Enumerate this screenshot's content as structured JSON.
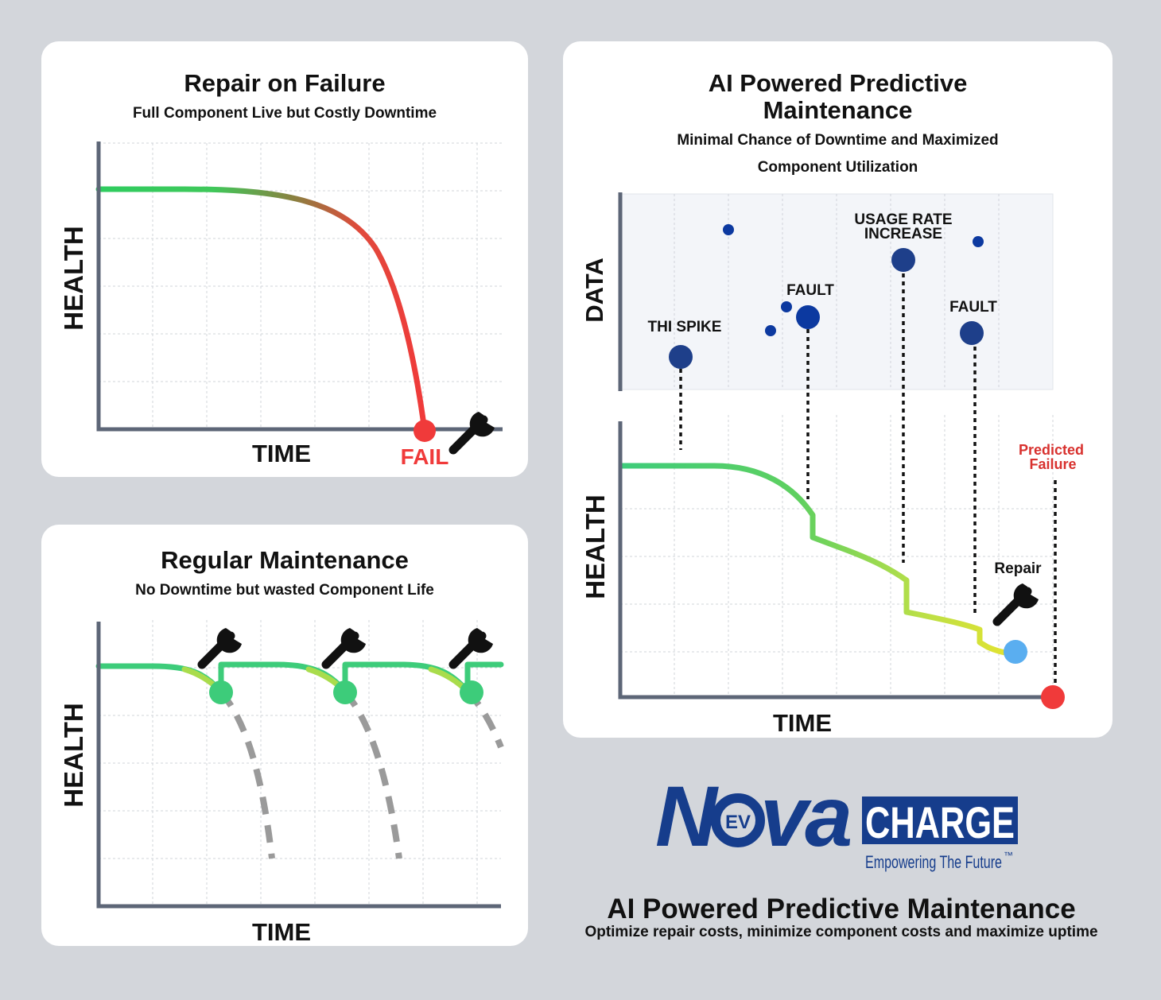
{
  "panels": {
    "repair": {
      "title": "Repair on Failure",
      "subtitle": "Full Component Live but Costly Downtime",
      "y_label": "HEALTH",
      "x_label": "TIME",
      "fail_label": "FAIL"
    },
    "regular": {
      "title": "Regular Maintenance",
      "subtitle": "No Downtime but wasted Component Life",
      "y_label": "HEALTH",
      "x_label": "TIME"
    },
    "ai": {
      "title_line1": "AI Powered Predictive",
      "title_line2": "Maintenance",
      "subtitle_line1": "Minimal Chance of Downtime and Maximized",
      "subtitle_line2": "Component Utilization",
      "data_label": "DATA",
      "y_label": "HEALTH",
      "x_label": "TIME",
      "events": {
        "thi_spike": "THI SPIKE",
        "fault1": "FAULT",
        "usage_line1": "USAGE RATE",
        "usage_line2": "INCREASE",
        "fault2": "FAULT"
      },
      "predicted_line1": "Predicted",
      "predicted_line2": "Failure",
      "repair_label": "Repair"
    }
  },
  "logo": {
    "nova": "Nova",
    "ev": "EV",
    "charge": "CHARGE",
    "tagline": "Empowering The Future",
    "tm": "™"
  },
  "footer": {
    "title": "AI Powered Predictive Maintenance",
    "subtitle": "Optimize repair costs, minimize component costs and maximize uptime"
  },
  "colors": {
    "healthy_green": "#2ecc5f",
    "fail_red": "#f03a3a",
    "data_dot_blue": "#1e3f8a",
    "repair_dot_blue": "#5aaef0",
    "logo_navy": "#163d8c",
    "predicted_red": "#d8312e"
  }
}
